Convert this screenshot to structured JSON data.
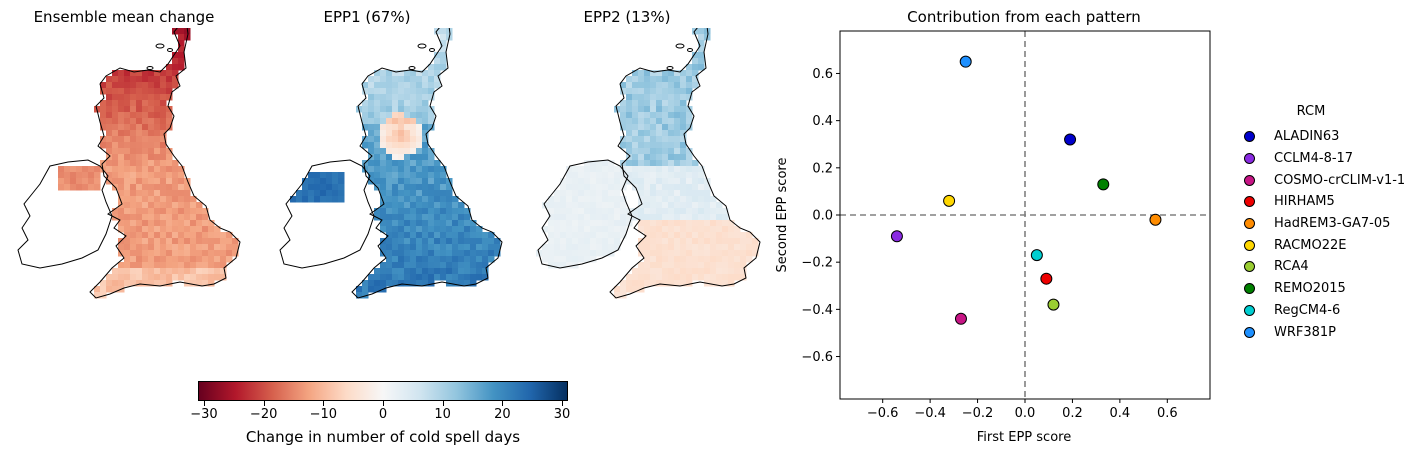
{
  "maps": [
    {
      "title": "Ensemble mean change",
      "style": "mean"
    },
    {
      "title": "EPP1 (67%)",
      "style": "epp1"
    },
    {
      "title": "EPP2 (13%)",
      "style": "epp2"
    }
  ],
  "colorbar": {
    "label": "Change in number of cold spell days",
    "colormap": "RdBu",
    "range": [
      -31,
      31
    ],
    "ticks": [
      -30,
      -20,
      -10,
      0,
      10,
      20,
      30
    ],
    "tick_labels": [
      "−30",
      "−20",
      "−10",
      "0",
      "10",
      "20",
      "30"
    ]
  },
  "chart_data": {
    "type": "scatter",
    "title": "Contribution from each pattern",
    "xlabel": "First EPP score",
    "ylabel": "Second EPP score",
    "xlim": [
      -0.78,
      0.78
    ],
    "ylim": [
      -0.78,
      0.78
    ],
    "xticks": [
      -0.6,
      -0.4,
      -0.2,
      0.0,
      0.2,
      0.4,
      0.6
    ],
    "xtick_labels": [
      "−0.6",
      "−0.4",
      "−0.2",
      "0.0",
      "0.2",
      "0.4",
      "0.6"
    ],
    "yticks": [
      -0.6,
      -0.4,
      -0.2,
      0.0,
      0.2,
      0.4,
      0.6
    ],
    "ytick_labels": [
      "−0.6",
      "−0.4",
      "−0.2",
      "0.0",
      "0.2",
      "0.4",
      "0.6"
    ],
    "reference_lines": {
      "x": 0,
      "y": 0,
      "style": "dashed"
    },
    "legend_title": "RCM",
    "legend_placement": "right, outside",
    "points": [
      {
        "name": "ALADIN63",
        "x": 0.19,
        "y": 0.32,
        "color": "#0000cc"
      },
      {
        "name": "CCLM4-8-17",
        "x": -0.54,
        "y": -0.09,
        "color": "#8a2be2"
      },
      {
        "name": "COSMO-crCLIM-v1-1",
        "x": -0.27,
        "y": -0.44,
        "color": "#c71585"
      },
      {
        "name": "HIRHAM5",
        "x": 0.09,
        "y": -0.27,
        "color": "#ee0000"
      },
      {
        "name": "HadREM3-GA7-05",
        "x": 0.55,
        "y": -0.02,
        "color": "#ff8c00"
      },
      {
        "name": "RACMO22E",
        "x": -0.32,
        "y": 0.06,
        "color": "#ffd700"
      },
      {
        "name": "RCA4",
        "x": 0.12,
        "y": -0.38,
        "color": "#9acd32"
      },
      {
        "name": "REMO2015",
        "x": 0.33,
        "y": 0.13,
        "color": "#008000"
      },
      {
        "name": "RegCM4-6",
        "x": 0.05,
        "y": -0.17,
        "color": "#00ced1"
      },
      {
        "name": "WRF381P",
        "x": -0.25,
        "y": 0.65,
        "color": "#1e90ff"
      }
    ]
  }
}
